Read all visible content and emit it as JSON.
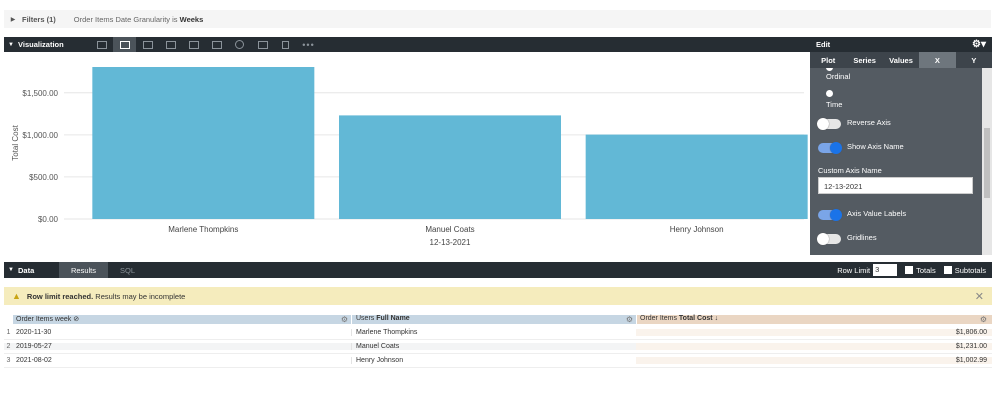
{
  "filters": {
    "label": "Filters (1)",
    "description_prefix": "Order Items Date Granularity is",
    "description_value": "Weeks"
  },
  "visualization": {
    "label": "Visualization",
    "icons": [
      "table-icon",
      "column-chart-icon",
      "bar-chart-icon",
      "scatter-icon",
      "line-chart-icon",
      "area-chart-icon",
      "pie-chart-icon",
      "map-icon",
      "single-value-icon"
    ],
    "active_icon": 1,
    "more": "•••"
  },
  "chart_data": {
    "type": "bar",
    "categories": [
      "Marlene Thompkins",
      "Manuel Coats",
      "Henry Johnson"
    ],
    "values": [
      1806.0,
      1231.0,
      1002.99
    ],
    "title": "",
    "xlabel": "12-13-2021",
    "ylabel": "Total Cost",
    "ylim": [
      0,
      1806
    ],
    "yticks": [
      0,
      500,
      1000,
      1500
    ],
    "ytick_labels": [
      "$0.00",
      "$500.00",
      "$1,000.00",
      "$1,500.00"
    ],
    "grid": true,
    "colors": {
      "bar": "#62b8d6"
    }
  },
  "edit_panel": {
    "title": "Edit",
    "tabs": [
      "Plot",
      "Series",
      "Values",
      "X",
      "Y"
    ],
    "active_tab": 3,
    "radio_ordinal": "Ordinal",
    "radio_time": "Time",
    "reverse_axis": "Reverse Axis",
    "show_axis_name": "Show Axis Name",
    "custom_axis_name_label": "Custom Axis Name",
    "custom_axis_name_value": "12-13-2021",
    "axis_value_labels": "Axis Value Labels",
    "gridlines": "Gridlines"
  },
  "data_bar": {
    "label": "Data",
    "tabs": [
      "Results",
      "SQL"
    ],
    "row_limit_label": "Row Limit",
    "row_limit_value": "3",
    "totals": "Totals",
    "subtotals": "Subtotals"
  },
  "warning": {
    "bold": "Row limit reached.",
    "text": "Results may be incomplete"
  },
  "table": {
    "headers": [
      {
        "prefix": "Order Items week",
        "bold": "",
        "suffix": "⊘"
      },
      {
        "prefix": "Users",
        "bold": "Full Name",
        "suffix": ""
      },
      {
        "prefix": "Order Items",
        "bold": "Total Cost",
        "suffix": "↓"
      }
    ],
    "rows": [
      {
        "n": "1",
        "week": "2020-11-30",
        "name": "Marlene Thompkins",
        "cost": "$1,806.00"
      },
      {
        "n": "2",
        "week": "2019-05-27",
        "name": "Manuel Coats",
        "cost": "$1,231.00"
      },
      {
        "n": "3",
        "week": "2021-08-02",
        "name": "Henry Johnson",
        "cost": "$1,002.99"
      }
    ]
  }
}
